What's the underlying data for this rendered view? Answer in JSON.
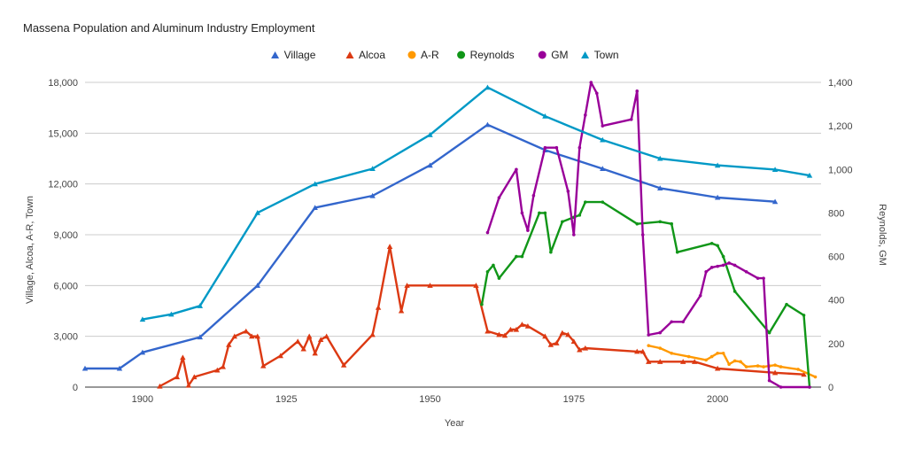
{
  "chart_data": {
    "type": "line",
    "title": "Massena Population and Aluminum Industry Employment",
    "xlabel": "Year",
    "ylabel_left": "Village, Alcoa, A-R, Town",
    "ylabel_right": "Reynolds, GM",
    "xlim": [
      1890,
      2018
    ],
    "ylim_left": [
      0,
      18000
    ],
    "ylim_right": [
      0,
      1400
    ],
    "x_ticks": [
      1900,
      1925,
      1950,
      1975,
      2000
    ],
    "x_tick_labels": [
      "1900",
      "1925",
      "1950",
      "1975",
      "2000"
    ],
    "y_left_ticks": [
      0,
      3000,
      6000,
      9000,
      12000,
      15000,
      18000
    ],
    "y_left_tick_labels": [
      "0",
      "3,000",
      "6,000",
      "9,000",
      "12,000",
      "15,000",
      "18,000"
    ],
    "y_right_ticks": [
      0,
      200,
      400,
      600,
      800,
      1000,
      1200,
      1400
    ],
    "y_right_tick_labels": [
      "0",
      "200",
      "400",
      "600",
      "800",
      "1,000",
      "1,200",
      "1,400"
    ],
    "grid": "horizontal",
    "legend_position": "top-center",
    "series": [
      {
        "name": "Village",
        "color": "#3366cc",
        "marker": "triangle",
        "axis": "left",
        "points": [
          [
            1890,
            1100
          ],
          [
            1896,
            1100
          ],
          [
            1900,
            2050
          ],
          [
            1910,
            2950
          ],
          [
            1920,
            6000
          ],
          [
            1930,
            10600
          ],
          [
            1940,
            11300
          ],
          [
            1950,
            13100
          ],
          [
            1960,
            15500
          ],
          [
            1970,
            14000
          ],
          [
            1980,
            12900
          ],
          [
            1990,
            11750
          ],
          [
            2000,
            11200
          ],
          [
            2010,
            10950
          ]
        ]
      },
      {
        "name": "Alcoa",
        "color": "#dc3912",
        "marker": "triangle",
        "axis": "left",
        "points": [
          [
            1903,
            50
          ],
          [
            1906,
            600
          ],
          [
            1907,
            1750
          ],
          [
            1908,
            100
          ],
          [
            1909,
            600
          ],
          [
            1913,
            1000
          ],
          [
            1914,
            1200
          ],
          [
            1915,
            2500
          ],
          [
            1916,
            3000
          ],
          [
            1918,
            3300
          ],
          [
            1919,
            3000
          ],
          [
            1920,
            3000
          ],
          [
            1921,
            1250
          ],
          [
            1924,
            1850
          ],
          [
            1927,
            2700
          ],
          [
            1928,
            2250
          ],
          [
            1929,
            3000
          ],
          [
            1930,
            2000
          ],
          [
            1931,
            2800
          ],
          [
            1932,
            3000
          ],
          [
            1935,
            1300
          ],
          [
            1940,
            3100
          ],
          [
            1941,
            4700
          ],
          [
            1943,
            8300
          ],
          [
            1945,
            4500
          ],
          [
            1946,
            6000
          ],
          [
            1950,
            6000
          ],
          [
            1958,
            6000
          ],
          [
            1960,
            3300
          ],
          [
            1962,
            3100
          ],
          [
            1963,
            3050
          ],
          [
            1964,
            3400
          ],
          [
            1965,
            3400
          ],
          [
            1966,
            3700
          ],
          [
            1967,
            3600
          ],
          [
            1970,
            3000
          ],
          [
            1971,
            2500
          ],
          [
            1972,
            2600
          ],
          [
            1973,
            3200
          ],
          [
            1974,
            3100
          ],
          [
            1975,
            2700
          ],
          [
            1976,
            2200
          ],
          [
            1977,
            2300
          ],
          [
            1986,
            2100
          ],
          [
            1987,
            2100
          ],
          [
            1988,
            1500
          ],
          [
            1990,
            1500
          ],
          [
            1994,
            1500
          ],
          [
            1996,
            1500
          ],
          [
            2000,
            1100
          ],
          [
            2010,
            850
          ],
          [
            2015,
            750
          ]
        ]
      },
      {
        "name": "A-R",
        "color": "#ff9900",
        "marker": "circle",
        "axis": "left",
        "points": [
          [
            1988,
            2450
          ],
          [
            1990,
            2300
          ],
          [
            1992,
            2000
          ],
          [
            1995,
            1800
          ],
          [
            1998,
            1600
          ],
          [
            1999,
            1800
          ],
          [
            2000,
            2000
          ],
          [
            2001,
            2000
          ],
          [
            2002,
            1350
          ],
          [
            2003,
            1550
          ],
          [
            2004,
            1500
          ],
          [
            2005,
            1200
          ],
          [
            2007,
            1250
          ],
          [
            2008,
            1200
          ],
          [
            2009,
            1250
          ],
          [
            2010,
            1300
          ],
          [
            2011,
            1200
          ],
          [
            2014,
            1050
          ],
          [
            2017,
            600
          ]
        ]
      },
      {
        "name": "Reynolds",
        "color": "#109618",
        "marker": "circle",
        "axis": "right",
        "points": [
          [
            1959,
            380
          ],
          [
            1960,
            530
          ],
          [
            1961,
            560
          ],
          [
            1962,
            500
          ],
          [
            1965,
            600
          ],
          [
            1966,
            600
          ],
          [
            1969,
            800
          ],
          [
            1970,
            800
          ],
          [
            1971,
            620
          ],
          [
            1973,
            760
          ],
          [
            1975,
            780
          ],
          [
            1976,
            790
          ],
          [
            1977,
            850
          ],
          [
            1980,
            850
          ],
          [
            1986,
            750
          ],
          [
            1990,
            760
          ],
          [
            1992,
            750
          ],
          [
            1993,
            620
          ],
          [
            1999,
            660
          ],
          [
            2000,
            650
          ],
          [
            2001,
            600
          ],
          [
            2003,
            440
          ],
          [
            2009,
            250
          ],
          [
            2012,
            380
          ],
          [
            2015,
            330
          ],
          [
            2016,
            0
          ]
        ]
      },
      {
        "name": "GM",
        "color": "#990099",
        "marker": "circle",
        "axis": "right",
        "points": [
          [
            1960,
            710
          ],
          [
            1962,
            870
          ],
          [
            1965,
            1000
          ],
          [
            1966,
            800
          ],
          [
            1967,
            720
          ],
          [
            1968,
            880
          ],
          [
            1970,
            1100
          ],
          [
            1972,
            1100
          ],
          [
            1974,
            900
          ],
          [
            1975,
            700
          ],
          [
            1976,
            1100
          ],
          [
            1977,
            1250
          ],
          [
            1978,
            1400
          ],
          [
            1979,
            1350
          ],
          [
            1980,
            1200
          ],
          [
            1985,
            1230
          ],
          [
            1986,
            1360
          ],
          [
            1987,
            700
          ],
          [
            1988,
            240
          ],
          [
            1990,
            250
          ],
          [
            1992,
            300
          ],
          [
            1994,
            300
          ],
          [
            1997,
            420
          ],
          [
            1998,
            530
          ],
          [
            1999,
            550
          ],
          [
            2000,
            555
          ],
          [
            2001,
            560
          ],
          [
            2002,
            570
          ],
          [
            2003,
            560
          ],
          [
            2005,
            530
          ],
          [
            2007,
            500
          ],
          [
            2008,
            500
          ],
          [
            2009,
            30
          ],
          [
            2011,
            0
          ],
          [
            2016,
            0
          ]
        ]
      },
      {
        "name": "Town",
        "color": "#0099c6",
        "marker": "triangle",
        "axis": "left",
        "points": [
          [
            1900,
            4000
          ],
          [
            1905,
            4300
          ],
          [
            1910,
            4800
          ],
          [
            1920,
            10300
          ],
          [
            1930,
            12000
          ],
          [
            1940,
            12900
          ],
          [
            1950,
            14900
          ],
          [
            1960,
            17700
          ],
          [
            1970,
            16000
          ],
          [
            1980,
            14600
          ],
          [
            1990,
            13500
          ],
          [
            2000,
            13100
          ],
          [
            2010,
            12850
          ],
          [
            2016,
            12500
          ]
        ]
      }
    ]
  }
}
